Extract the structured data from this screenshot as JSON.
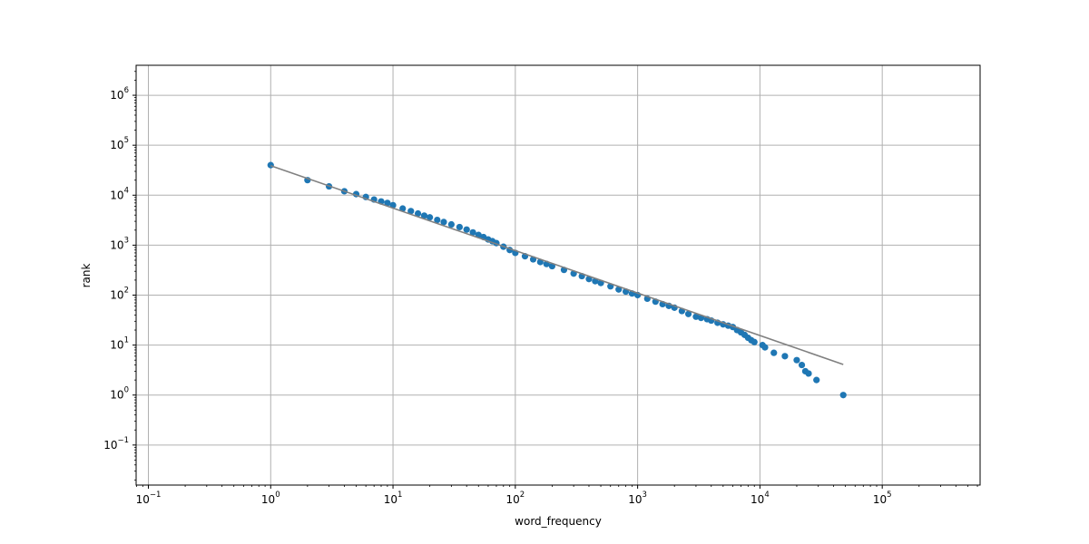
{
  "chart_data": {
    "type": "scatter",
    "title": "",
    "xlabel": "word_frequency",
    "ylabel": "rank",
    "x_scale": "log",
    "y_scale": "log",
    "xlim": [
      0.0794,
      630957
    ],
    "ylim": [
      0.0158,
      3981072
    ],
    "grid": true,
    "legend": "none",
    "colors": {
      "points": "#1f77b4",
      "fit_line": "#808080",
      "grid": "#b0b0b0"
    },
    "x_ticks": [
      {
        "value": 0.1,
        "base": "10",
        "exp": "−1"
      },
      {
        "value": 1,
        "base": "10",
        "exp": "0"
      },
      {
        "value": 10,
        "base": "10",
        "exp": "1"
      },
      {
        "value": 100,
        "base": "10",
        "exp": "2"
      },
      {
        "value": 1000,
        "base": "10",
        "exp": "3"
      },
      {
        "value": 10000,
        "base": "10",
        "exp": "4"
      },
      {
        "value": 100000,
        "base": "10",
        "exp": "5"
      }
    ],
    "y_ticks": [
      {
        "value": 0.1,
        "base": "10",
        "exp": "−1"
      },
      {
        "value": 1,
        "base": "10",
        "exp": "0"
      },
      {
        "value": 10,
        "base": "10",
        "exp": "1"
      },
      {
        "value": 100,
        "base": "10",
        "exp": "2"
      },
      {
        "value": 1000,
        "base": "10",
        "exp": "3"
      },
      {
        "value": 10000,
        "base": "10",
        "exp": "4"
      },
      {
        "value": 100000,
        "base": "10",
        "exp": "5"
      },
      {
        "value": 1000000,
        "base": "10",
        "exp": "6"
      }
    ],
    "fit_line": {
      "x": [
        1,
        48000
      ],
      "y": [
        39000,
        4.1
      ]
    },
    "series": [
      {
        "x": [
          1,
          2,
          3,
          4,
          5,
          6,
          7,
          8,
          9,
          10,
          12,
          14,
          16,
          18,
          20,
          23,
          26,
          30,
          35,
          40,
          45,
          50,
          55,
          60,
          65,
          70,
          80,
          90,
          100,
          120,
          140,
          160,
          180,
          200,
          250,
          300,
          350,
          400,
          450,
          500,
          600,
          700,
          800,
          900,
          1000,
          1200,
          1400,
          1600,
          1800,
          2000,
          2300,
          2600,
          3000,
          3300,
          3700,
          4000,
          4500,
          5000,
          5500,
          6000,
          6500,
          7000,
          7500,
          8000,
          8500,
          9000,
          10500,
          11000,
          13000,
          16000,
          20000,
          22000,
          23500,
          25000,
          29000,
          48000
        ],
        "y": [
          40000,
          20000,
          15000,
          12000,
          10500,
          9200,
          8200,
          7500,
          7000,
          6300,
          5400,
          4800,
          4300,
          3900,
          3600,
          3200,
          2900,
          2600,
          2300,
          2050,
          1800,
          1600,
          1450,
          1300,
          1200,
          1100,
          930,
          800,
          700,
          600,
          520,
          460,
          420,
          380,
          320,
          270,
          240,
          210,
          190,
          175,
          150,
          130,
          118,
          108,
          100,
          85,
          74,
          66,
          61,
          56,
          48,
          42,
          37,
          35,
          33,
          31,
          28,
          26,
          24.5,
          23,
          20,
          18,
          16,
          14,
          12.5,
          11.5,
          10,
          9,
          7,
          6,
          5,
          4,
          3,
          2.7,
          2,
          1
        ]
      }
    ]
  }
}
